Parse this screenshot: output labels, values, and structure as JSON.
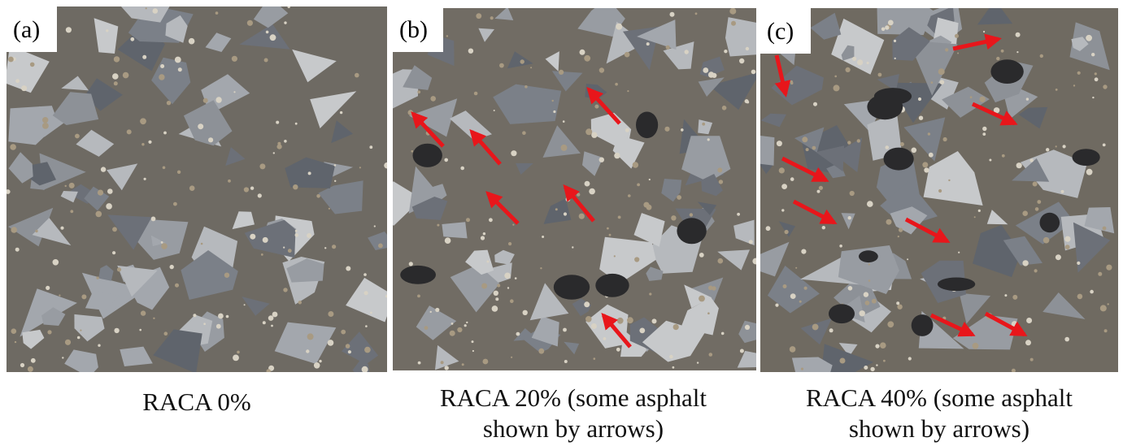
{
  "panels": [
    {
      "label": "(a)",
      "caption": [
        "RACA 0%"
      ]
    },
    {
      "label": "(b)",
      "caption": [
        "RACA 20% (some asphalt",
        "shown by arrows)"
      ]
    },
    {
      "label": "(c)",
      "caption": [
        "RACA 40% (some asphalt",
        "shown by arrows)"
      ]
    }
  ]
}
